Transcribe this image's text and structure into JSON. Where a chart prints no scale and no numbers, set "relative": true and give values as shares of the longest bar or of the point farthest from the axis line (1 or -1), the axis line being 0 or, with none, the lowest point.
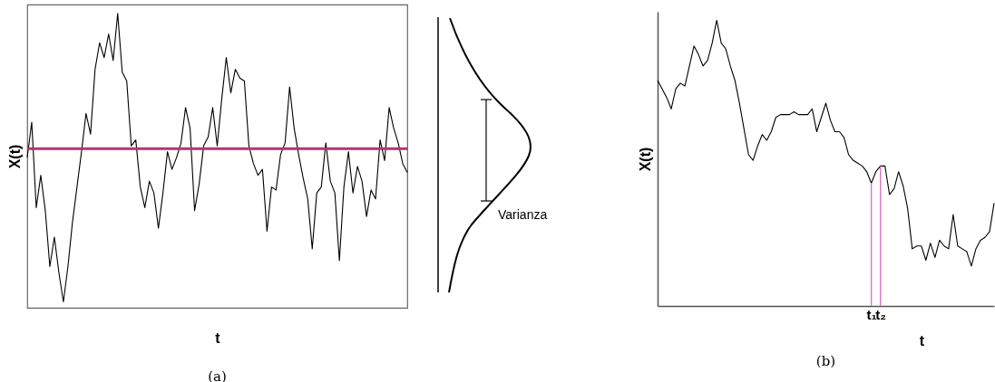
{
  "chart_data": [
    {
      "type": "line",
      "relative": true,
      "xlabel": "t",
      "ylabel": "X(t)",
      "legend": false,
      "grid": false,
      "categories": [
        null,
        null,
        null,
        null,
        null,
        null,
        null,
        null,
        null,
        null,
        null,
        null,
        null,
        null,
        null,
        null,
        null,
        null,
        null,
        null,
        null,
        null,
        null,
        null,
        null,
        null,
        null,
        null,
        null,
        null,
        null,
        null,
        null,
        null,
        null,
        null,
        null,
        null,
        null,
        null,
        null,
        null,
        null,
        null,
        null,
        null,
        null,
        null,
        null,
        null,
        null,
        null,
        null,
        null,
        null,
        null,
        null,
        null,
        null,
        null,
        null,
        null,
        null,
        null,
        null,
        null,
        null,
        null,
        null,
        null,
        null,
        null,
        null,
        null,
        null,
        null,
        null,
        null,
        null,
        null,
        null,
        null,
        null,
        null,
        null
      ],
      "series": [
        {
          "color": "#000000",
          "values": [
            0.51,
            0.63,
            0.34,
            0.45,
            0.33,
            0.14,
            0.24,
            0.12,
            0.02,
            0.14,
            0.29,
            0.41,
            0.53,
            0.66,
            0.59,
            0.81,
            0.9,
            0.85,
            0.93,
            0.84,
            1.0,
            0.8,
            0.77,
            0.55,
            0.57,
            0.41,
            0.34,
            0.43,
            0.39,
            0.27,
            0.39,
            0.53,
            0.47,
            0.51,
            0.56,
            0.68,
            0.61,
            0.33,
            0.42,
            0.55,
            0.58,
            0.68,
            0.55,
            0.71,
            0.85,
            0.73,
            0.81,
            0.78,
            0.77,
            0.55,
            0.49,
            0.45,
            0.47,
            0.26,
            0.41,
            0.4,
            0.52,
            0.56,
            0.75,
            0.61,
            0.52,
            0.44,
            0.37,
            0.2,
            0.39,
            0.41,
            0.56,
            0.43,
            0.39,
            0.16,
            0.41,
            0.53,
            0.39,
            0.48,
            0.43,
            0.31,
            0.4,
            0.37,
            0.57,
            0.5,
            0.68,
            0.61,
            0.56,
            0.49,
            0.46
          ]
        }
      ],
      "ref_lines": [
        {
          "axis": "y",
          "value": 0.54,
          "color": "#b5336f"
        }
      ],
      "annotations": [
        "Varianza",
        "(a)"
      ]
    },
    {
      "type": "line",
      "relative": true,
      "xlabel": "t",
      "ylabel": "X(t)",
      "legend": false,
      "grid": false,
      "categories": [
        null,
        null,
        null,
        null,
        null,
        null,
        null,
        null,
        null,
        null,
        null,
        null,
        null,
        null,
        null,
        null,
        null,
        null,
        null,
        null,
        null,
        null,
        null,
        null,
        null,
        null,
        null,
        null,
        null,
        null,
        null,
        null,
        null,
        null,
        null,
        null,
        null,
        null,
        null,
        null,
        null,
        null,
        null,
        null,
        null,
        null,
        null,
        "t₁",
        null,
        "t₂",
        null,
        null,
        null,
        null,
        null,
        null,
        null,
        null,
        null,
        null,
        null,
        null,
        null,
        null,
        null,
        null,
        null,
        null,
        null,
        null,
        null,
        null,
        null,
        null,
        null
      ],
      "series": [
        {
          "color": "#000000",
          "values": [
            0.79,
            0.76,
            0.73,
            0.69,
            0.76,
            0.78,
            0.77,
            0.84,
            0.91,
            0.88,
            0.84,
            0.86,
            0.92,
            1.0,
            0.92,
            0.9,
            0.84,
            0.79,
            0.71,
            0.62,
            0.53,
            0.51,
            0.56,
            0.6,
            0.58,
            0.61,
            0.66,
            0.67,
            0.67,
            0.67,
            0.68,
            0.67,
            0.67,
            0.67,
            0.69,
            0.61,
            0.66,
            0.71,
            0.65,
            0.61,
            0.61,
            0.59,
            0.53,
            0.51,
            0.5,
            0.49,
            0.47,
            0.43,
            0.47,
            0.49,
            0.49,
            0.39,
            0.41,
            0.47,
            0.42,
            0.34,
            0.2,
            0.21,
            0.21,
            0.16,
            0.22,
            0.17,
            0.23,
            0.21,
            0.2,
            0.32,
            0.21,
            0.2,
            0.19,
            0.14,
            0.2,
            0.23,
            0.24,
            0.26,
            0.36
          ]
        }
      ],
      "ref_lines": [
        {
          "axis": "x",
          "value": "t₁",
          "color": "#e868c8"
        },
        {
          "axis": "x",
          "value": "t₂",
          "color": "#e868c8"
        }
      ],
      "annotations": [
        "(b)"
      ]
    }
  ]
}
